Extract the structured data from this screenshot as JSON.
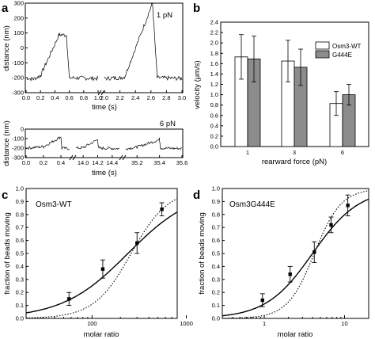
{
  "panels": {
    "a": {
      "letter": "a",
      "top": {
        "force_label": "1 pN",
        "ylabel": "distance (nm)",
        "xlabel": "time (s)",
        "yticks": [
          "300",
          "200",
          "100",
          "0",
          "-100",
          "-200",
          "-300"
        ],
        "xticks": [
          "0.0",
          "0.2",
          "0.4",
          "0.6",
          "0.8",
          "1.0",
          "2.0",
          "2.2",
          "2.4",
          "2.6",
          "2.8",
          "3.0"
        ]
      },
      "bottom": {
        "force_label": "6 pN",
        "ylabel": "distance (nm)",
        "xlabel": "time (s)",
        "yticks": [
          "0",
          "-100",
          "-200",
          "-300"
        ],
        "xticks": [
          "0.0",
          "0.2",
          "0.4",
          "14.0",
          "14.2",
          "14.4",
          "35.2",
          "35.4",
          "35.6"
        ]
      }
    },
    "b": {
      "letter": "b",
      "ylabel": "velocity (μm/s)",
      "xlabel": "rearward force (pN)",
      "yticks": [
        "0.0",
        "0.2",
        "0.4",
        "0.6",
        "0.8",
        "1.0",
        "1.2",
        "1.4",
        "1.6",
        "1.8",
        "2.0",
        "2.2",
        "2.4"
      ],
      "legend": [
        "Osm3-WT",
        "G444E"
      ]
    },
    "c": {
      "letter": "c",
      "title": "Osm3-WT",
      "ylabel": "fraction of beads moving",
      "xlabel": "molar ratio",
      "yticks": [
        "0.0",
        "0.1",
        "0.2",
        "0.3",
        "0.4",
        "0.5",
        "0.6",
        "0.7",
        "0.8",
        "0.9",
        "1.0"
      ],
      "xticks": [
        "100",
        "1000"
      ]
    },
    "d": {
      "letter": "d",
      "title": "Osm3G444E",
      "ylabel": "fraction of beads moving",
      "xlabel": "molar ratio",
      "yticks": [
        "0.0",
        "0.1",
        "0.2",
        "0.3",
        "0.4",
        "0.5",
        "0.6",
        "0.7",
        "0.8",
        "0.9",
        "1.0"
      ],
      "xticks": [
        "1",
        "10"
      ]
    }
  },
  "chart_data": [
    {
      "type": "line",
      "panel": "a-top",
      "xlim_segments": [
        [
          0,
          1.0
        ],
        [
          2.0,
          3.0
        ]
      ],
      "ylim": [
        -300,
        300
      ],
      "series": [
        {
          "x": [
            0.0,
            0.1,
            0.2,
            0.46,
            0.56,
            0.6,
            1.0
          ],
          "y": [
            -200,
            -210,
            -185,
            90,
            85,
            -200,
            -205
          ]
        },
        {
          "x": [
            2.0,
            2.2,
            2.26,
            2.62,
            2.68,
            3.0
          ],
          "y": [
            -205,
            -200,
            -195,
            300,
            -200,
            -205
          ]
        }
      ]
    },
    {
      "type": "line",
      "panel": "a-bottom",
      "ylim": [
        -300,
        0
      ],
      "segments": [
        {
          "xlim": [
            0.0,
            0.5
          ],
          "x": [
            0.0,
            0.2,
            0.4,
            0.41,
            0.5
          ],
          "y": [
            -200,
            -185,
            -80,
            -200,
            -205
          ]
        },
        {
          "xlim": [
            13.9,
            14.5
          ],
          "x": [
            13.9,
            14.0,
            14.2,
            14.21,
            14.5
          ],
          "y": [
            -200,
            -195,
            -110,
            -200,
            -205
          ]
        },
        {
          "xlim": [
            35.1,
            35.6
          ],
          "x": [
            35.1,
            35.2,
            35.4,
            35.41,
            35.6
          ],
          "y": [
            -205,
            -190,
            -110,
            -200,
            -205
          ]
        }
      ]
    },
    {
      "type": "bar",
      "panel": "b",
      "categories": [
        "1",
        "3",
        "6"
      ],
      "ylim": [
        0,
        2.4
      ],
      "series": [
        {
          "name": "Osm3-WT",
          "values": [
            1.73,
            1.65,
            0.83
          ],
          "errors": [
            0.43,
            0.4,
            0.23
          ]
        },
        {
          "name": "G444E",
          "values": [
            1.69,
            1.53,
            1.0
          ],
          "errors": [
            0.44,
            0.35,
            0.2
          ]
        }
      ],
      "colors": [
        "#ffffff",
        "#8c8c8c"
      ]
    },
    {
      "type": "scatter",
      "panel": "c",
      "xscale": "log",
      "xlim": [
        20,
        800
      ],
      "ylim": [
        0,
        1
      ],
      "points": [
        {
          "x": 57,
          "y": 0.15,
          "err": 0.05
        },
        {
          "x": 130,
          "y": 0.38,
          "err": 0.07
        },
        {
          "x": 300,
          "y": 0.58,
          "err": 0.08
        },
        {
          "x": 550,
          "y": 0.84,
          "err": 0.05
        }
      ],
      "fits": [
        {
          "style": "solid",
          "ec50": 240,
          "hill": 1.25
        },
        {
          "style": "dotted",
          "ec50": 260,
          "hill": 2.2
        }
      ]
    },
    {
      "type": "scatter",
      "panel": "d",
      "xscale": "log",
      "xlim": [
        0.3,
        20
      ],
      "ylim": [
        0,
        1
      ],
      "points": [
        {
          "x": 0.95,
          "y": 0.14,
          "err": 0.05
        },
        {
          "x": 2.1,
          "y": 0.34,
          "err": 0.06
        },
        {
          "x": 4.2,
          "y": 0.51,
          "err": 0.08
        },
        {
          "x": 6.8,
          "y": 0.72,
          "err": 0.06
        },
        {
          "x": 11.0,
          "y": 0.87,
          "err": 0.08
        }
      ],
      "fits": [
        {
          "style": "solid",
          "ec50": 4.0,
          "hill": 1.5
        },
        {
          "style": "dotted",
          "ec50": 4.2,
          "hill": 2.6
        }
      ]
    }
  ]
}
